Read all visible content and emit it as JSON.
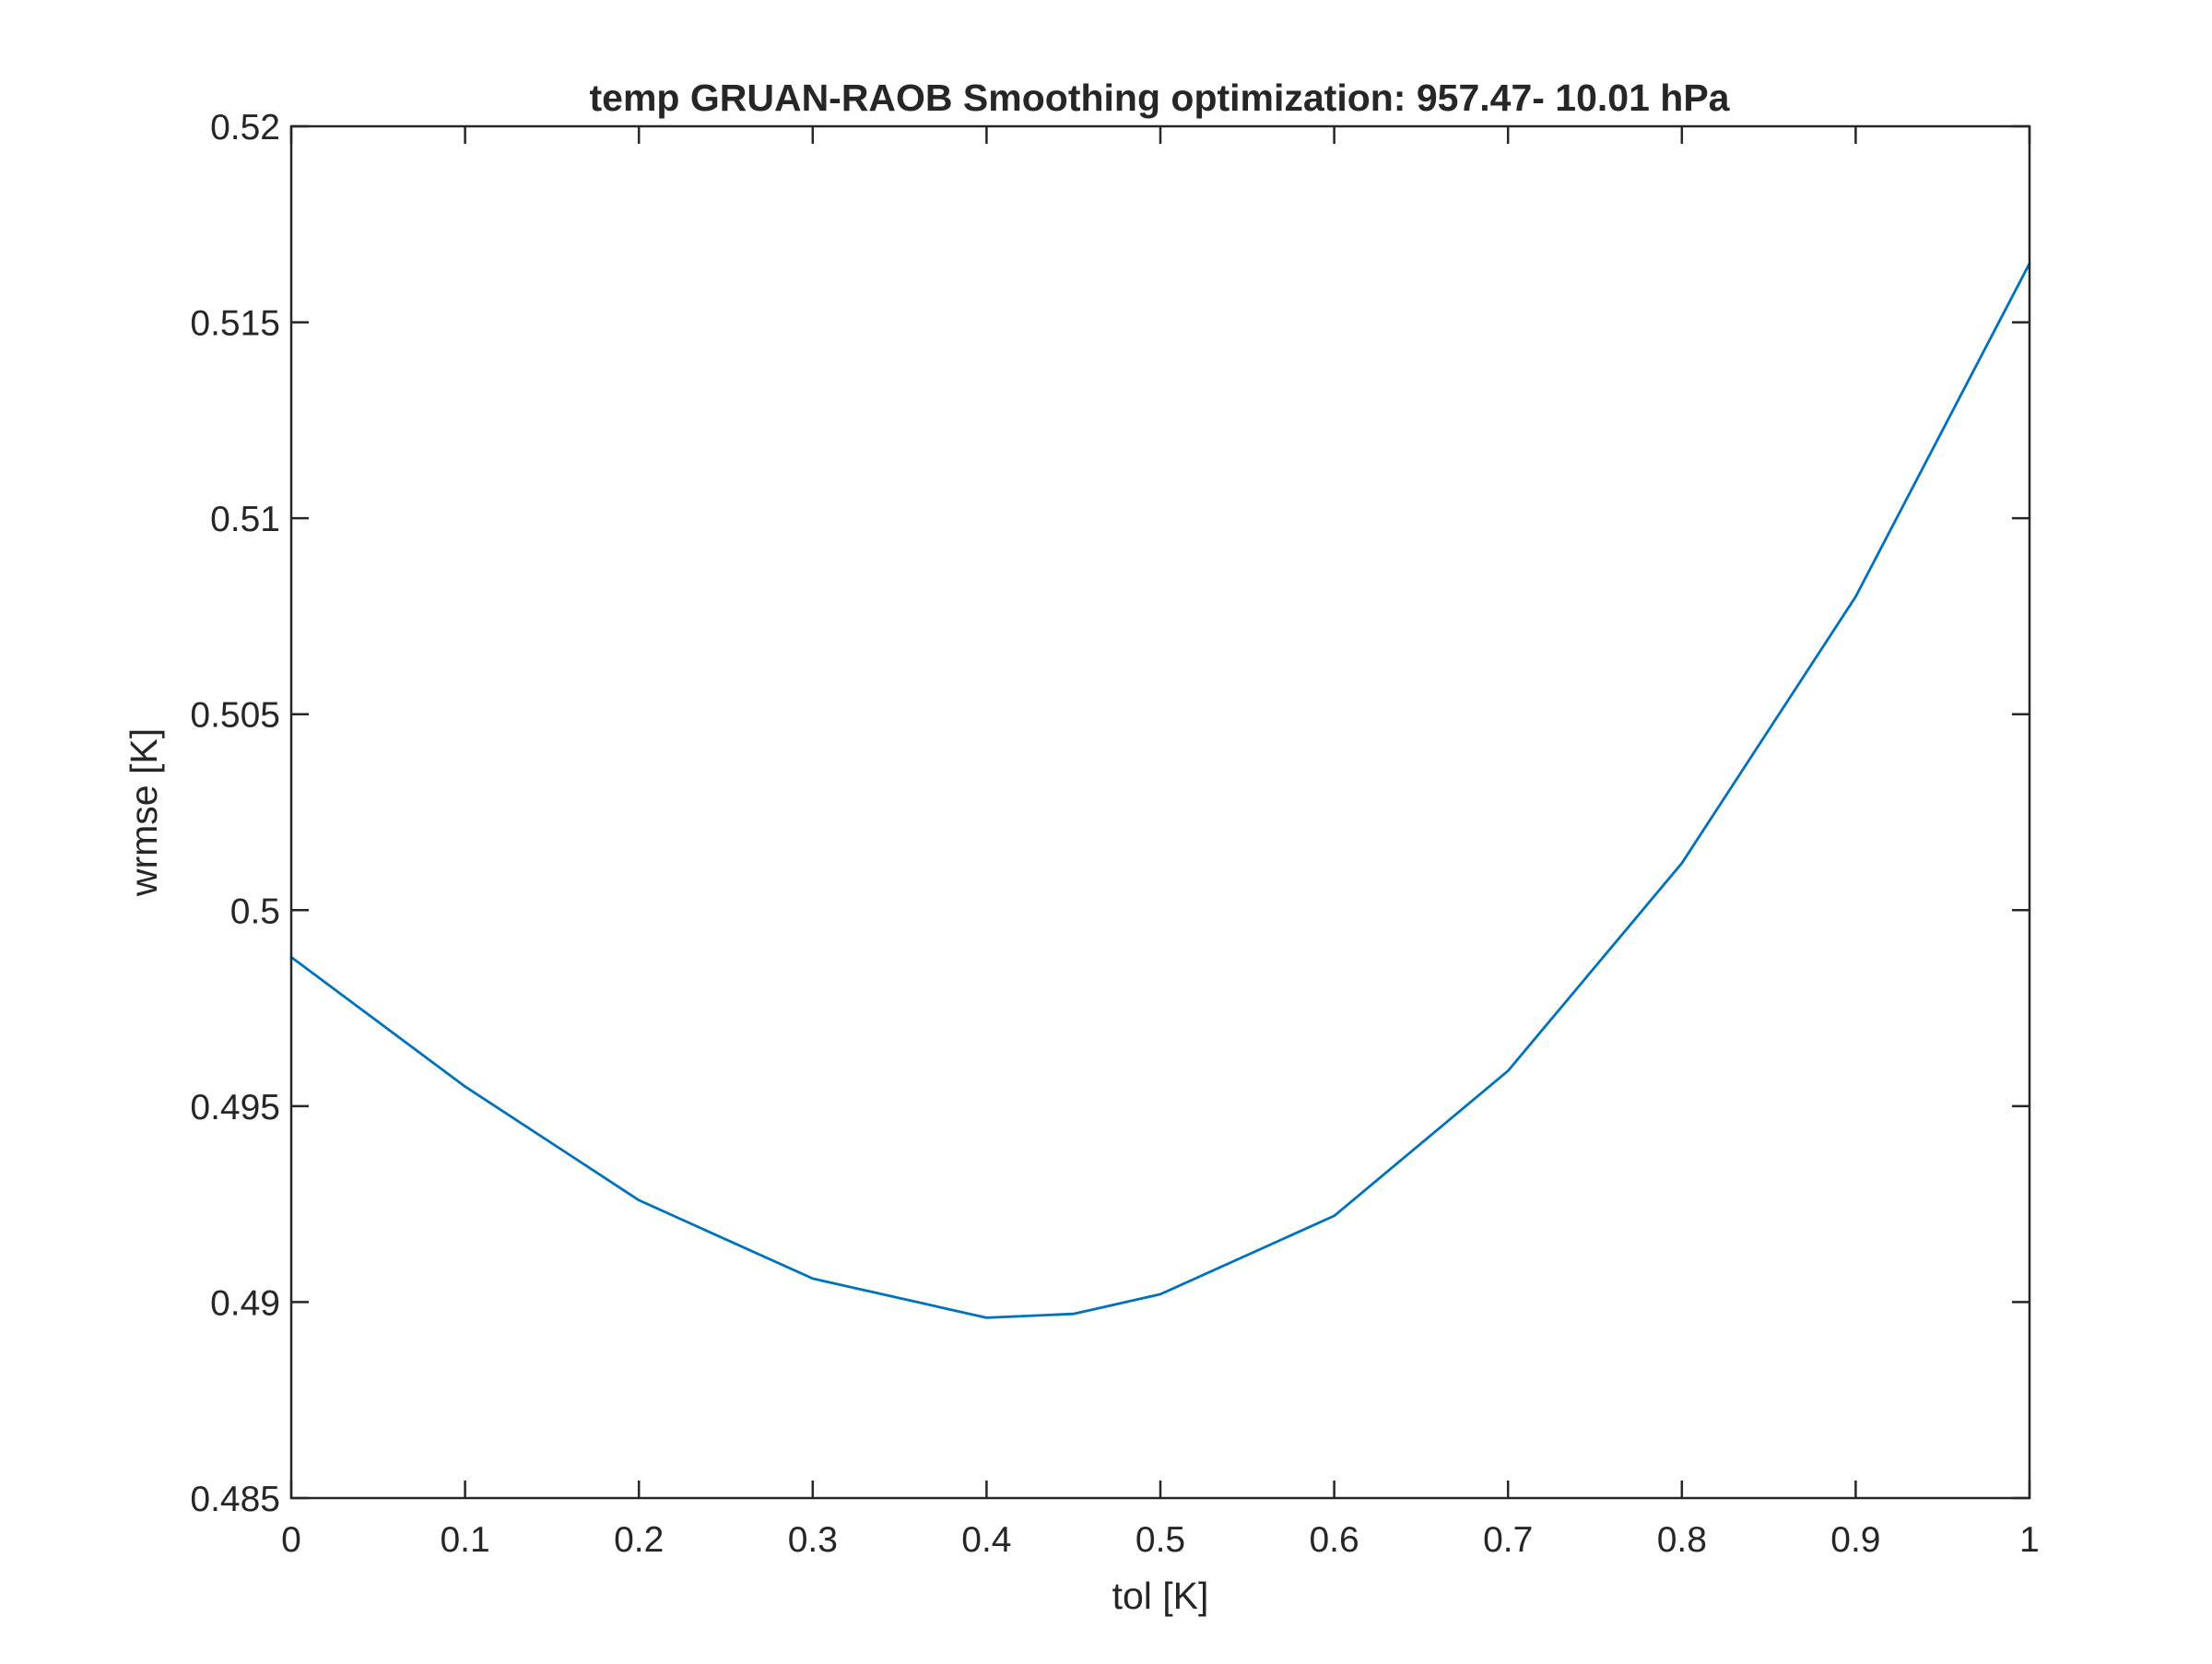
{
  "chart_data": {
    "type": "line",
    "title": "temp GRUAN-RAOB Smoothing optimization:  957.47- 10.01 hPa",
    "xlabel": "tol [K]",
    "ylabel": "wrmse [K]",
    "xlim": [
      0,
      1
    ],
    "ylim": [
      0.485,
      0.52
    ],
    "xticks": [
      0,
      0.1,
      0.2,
      0.3,
      0.4,
      0.5,
      0.6,
      0.7,
      0.8,
      0.9,
      1
    ],
    "xtick_labels": [
      "0",
      "0.1",
      "0.2",
      "0.3",
      "0.4",
      "0.5",
      "0.6",
      "0.7",
      "0.8",
      "0.9",
      "1"
    ],
    "yticks": [
      0.485,
      0.49,
      0.495,
      0.5,
      0.505,
      0.51,
      0.515,
      0.52
    ],
    "ytick_labels": [
      "0.485",
      "0.49",
      "0.495",
      "0.5",
      "0.505",
      "0.51",
      "0.515",
      "0.52"
    ],
    "grid": false,
    "legend": "none",
    "series": [
      {
        "color": "#0072bd",
        "x": [
          0,
          0.1,
          0.2,
          0.3,
          0.4,
          0.45,
          0.5,
          0.6,
          0.7,
          0.8,
          0.9,
          1
        ],
        "y": [
          0.4988,
          0.4955,
          0.4926,
          0.4906,
          0.4896,
          0.4897,
          0.4902,
          0.4922,
          0.4959,
          0.5012,
          0.508,
          0.5165
        ]
      }
    ]
  }
}
